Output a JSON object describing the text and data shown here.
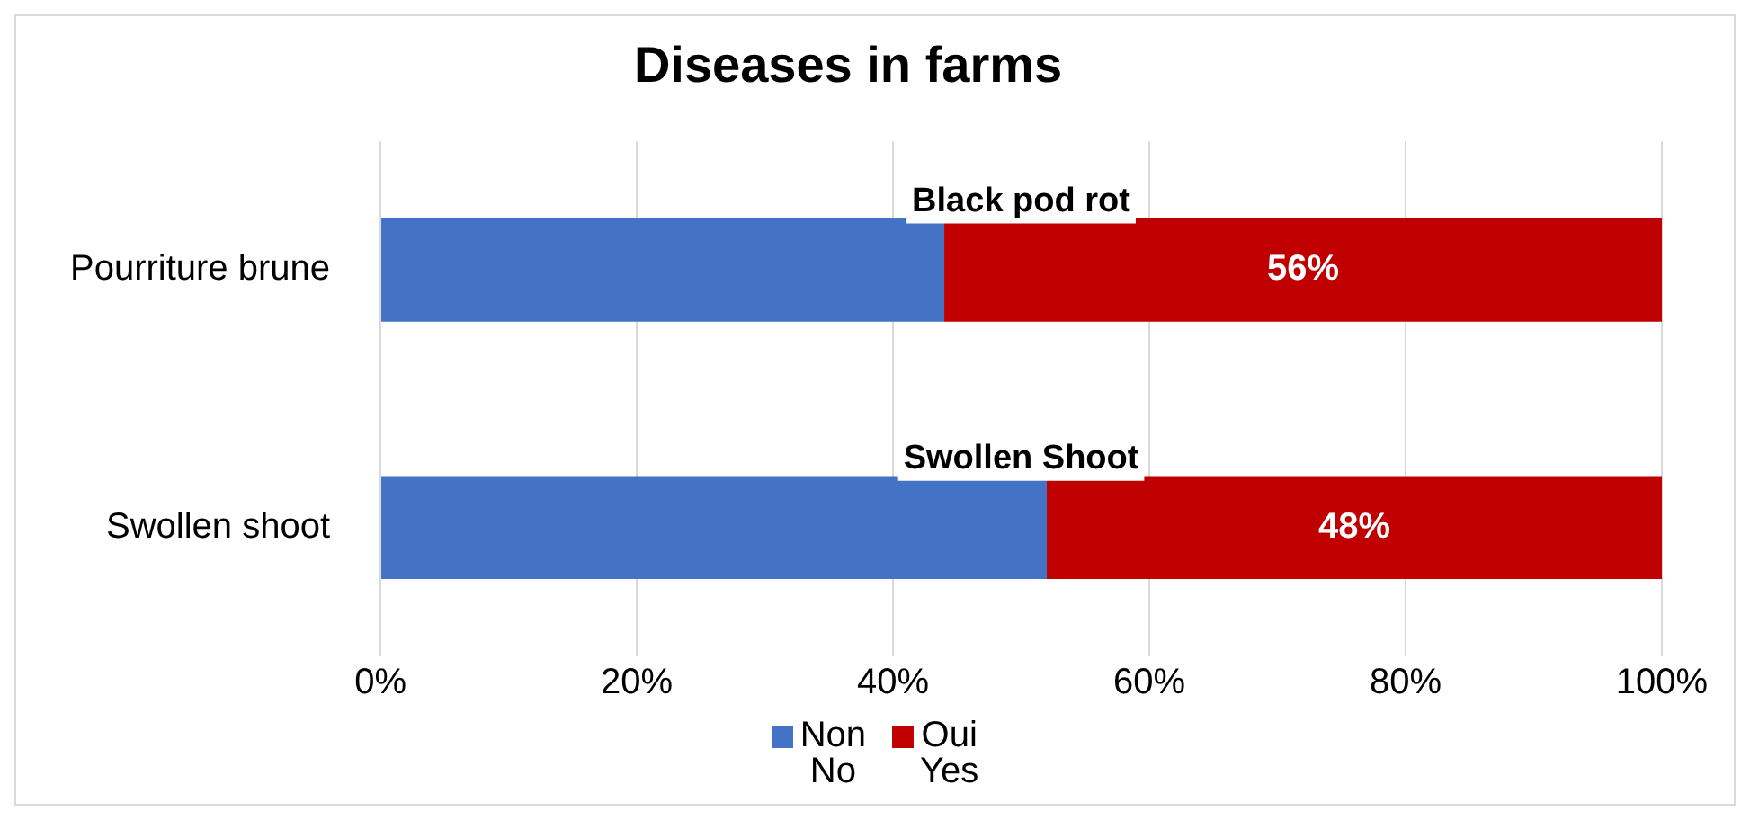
{
  "chart_data": {
    "type": "bar",
    "orientation": "horizontal",
    "stacked": true,
    "title": "Diseases in farms",
    "categories": [
      "Pourriture brune",
      "Swollen shoot"
    ],
    "series": [
      {
        "name": "Non\nNo",
        "color": "#4472c4",
        "values": [
          44,
          52
        ]
      },
      {
        "name": "Oui\nYes",
        "color": "#c00000",
        "values": [
          56,
          48
        ],
        "value_labels": [
          "56%",
          "48%"
        ]
      }
    ],
    "annotations": [
      "Black pod rot",
      "Swollen Shoot"
    ],
    "xlim": [
      0,
      100
    ],
    "xticks": [
      {
        "value": 0,
        "label": "0%"
      },
      {
        "value": 20,
        "label": "20%"
      },
      {
        "value": 40,
        "label": "40%"
      },
      {
        "value": 60,
        "label": "60%"
      },
      {
        "value": 80,
        "label": "80%"
      },
      {
        "value": 100,
        "label": "100%"
      }
    ],
    "grid": "x",
    "legend": "bottom"
  }
}
